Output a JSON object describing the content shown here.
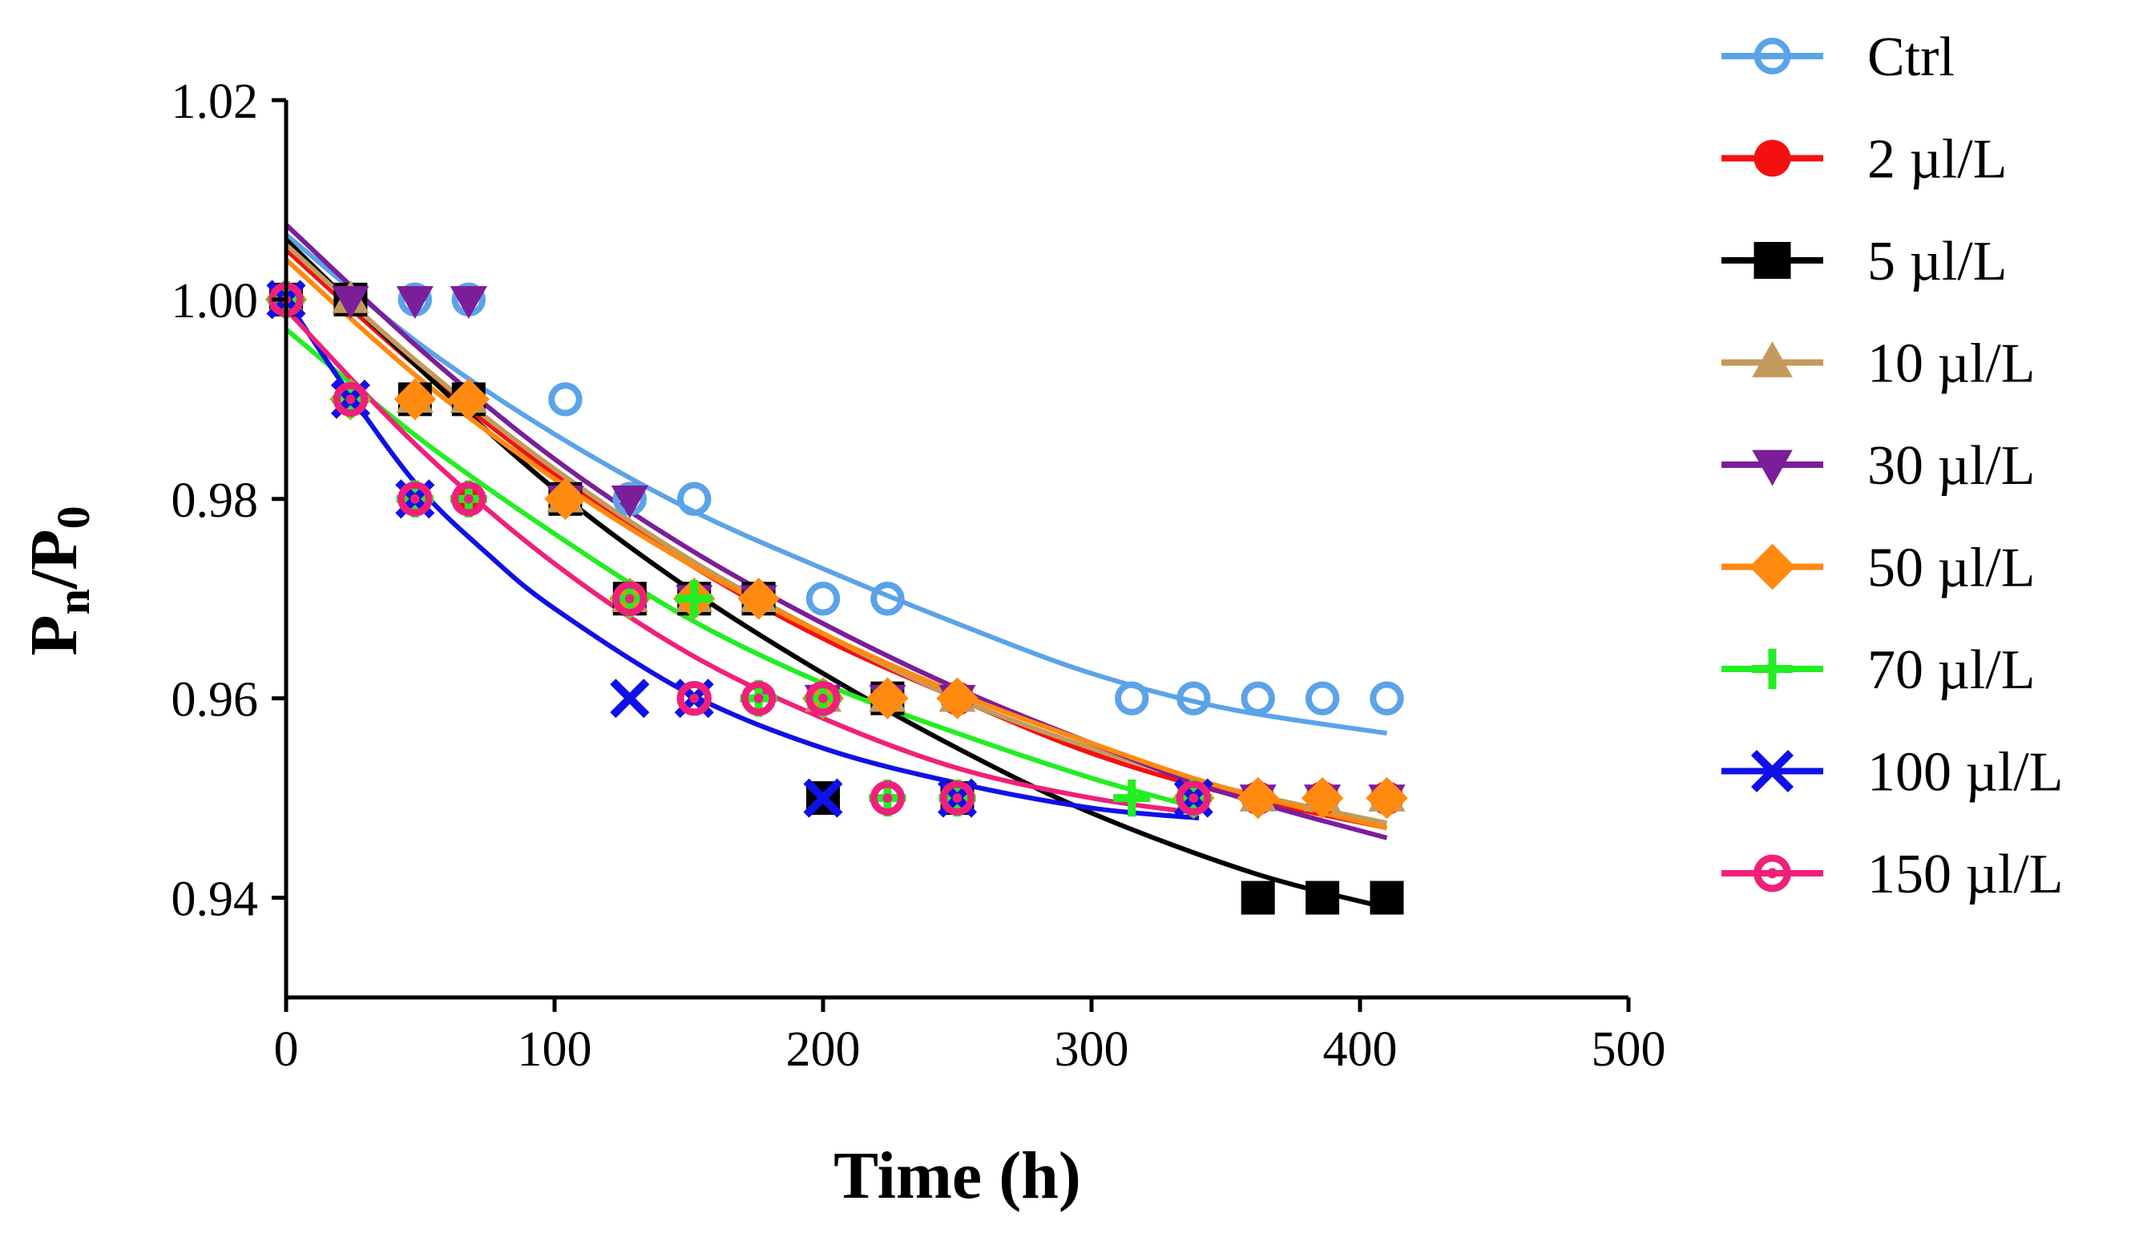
{
  "chart_data": {
    "type": "scatter",
    "title": "",
    "xlabel": "Time (h)",
    "ylabel": {
      "base": "P",
      "num_sub": "n",
      "sep": "/",
      "den_base": "P",
      "den_sub": "0"
    },
    "xlim": [
      0,
      500
    ],
    "ylim": [
      0.93,
      1.02
    ],
    "xticks": [
      0,
      100,
      200,
      300,
      400,
      500
    ],
    "yticks": [
      0.94,
      0.96,
      0.98,
      1.0,
      1.02
    ],
    "xtick_labels": [
      "0",
      "100",
      "200",
      "300",
      "400",
      "500"
    ],
    "ytick_labels": [
      "0.94",
      "0.96",
      "0.98",
      "1.00",
      "1.02"
    ],
    "grid": false,
    "legend_position": "right",
    "series": [
      {
        "name": "Ctrl",
        "color": "#5BA3E8",
        "marker": "circle-open",
        "x": [
          0,
          24,
          48,
          68,
          104,
          128,
          152,
          176,
          200,
          224,
          250,
          315,
          338,
          362,
          386,
          410
        ],
        "y": [
          1.0,
          1.0,
          1.0,
          1.0,
          0.99,
          0.98,
          0.98,
          0.97,
          0.97,
          0.97,
          0.96,
          0.96,
          0.96,
          0.96,
          0.96,
          0.96
        ],
        "fit_x": [
          0,
          50,
          100,
          150,
          200,
          250,
          300,
          350,
          410
        ],
        "fit_y": [
          1.0065,
          0.9955,
          0.9865,
          0.979,
          0.973,
          0.9675,
          0.9625,
          0.959,
          0.9565
        ]
      },
      {
        "name": "2 µl/L",
        "color": "#F41010",
        "marker": "circle-filled",
        "x": [
          0,
          24,
          48,
          68,
          104,
          128,
          152,
          176,
          200,
          224,
          250,
          338,
          362,
          386,
          410
        ],
        "y": [
          1.0,
          0.99,
          0.99,
          0.98,
          0.98,
          0.97,
          0.97,
          0.97,
          0.96,
          0.96,
          0.96,
          0.95,
          0.95,
          0.95,
          0.95
        ],
        "fit_x": [
          0,
          50,
          100,
          150,
          200,
          250,
          300,
          350,
          410
        ],
        "fit_y": [
          1.005,
          0.993,
          0.9825,
          0.9735,
          0.966,
          0.96,
          0.9545,
          0.9505,
          0.947
        ]
      },
      {
        "name": "5 µl/L",
        "color": "#000000",
        "marker": "square-filled",
        "x": [
          0,
          24,
          48,
          68,
          104,
          128,
          152,
          176,
          200,
          224,
          250,
          362,
          386,
          410
        ],
        "y": [
          1.0,
          1.0,
          0.99,
          0.99,
          0.98,
          0.97,
          0.97,
          0.97,
          0.95,
          0.96,
          0.95,
          0.94,
          0.94,
          0.94
        ],
        "fit_x": [
          0,
          50,
          100,
          150,
          200,
          250,
          300,
          360,
          410
        ],
        "fit_y": [
          1.006,
          0.993,
          0.981,
          0.971,
          0.9625,
          0.955,
          0.9485,
          0.9425,
          0.939
        ]
      },
      {
        "name": "10 µl/L",
        "color": "#C49A5C",
        "marker": "triangle-up-filled",
        "x": [
          0,
          24,
          48,
          68,
          104,
          128,
          152,
          176,
          200,
          224,
          250,
          338,
          362,
          386,
          410
        ],
        "y": [
          1.0,
          1.0,
          0.99,
          0.99,
          0.98,
          0.97,
          0.97,
          0.97,
          0.96,
          0.96,
          0.96,
          0.95,
          0.95,
          0.95,
          0.95
        ],
        "fit_x": [
          0,
          50,
          100,
          150,
          200,
          250,
          300,
          350,
          410
        ],
        "fit_y": [
          1.0055,
          0.9935,
          0.983,
          0.974,
          0.9665,
          0.96,
          0.955,
          0.951,
          0.9475
        ]
      },
      {
        "name": "30 µl/L",
        "color": "#7B1E9A",
        "marker": "triangle-down-filled",
        "x": [
          0,
          24,
          48,
          68,
          104,
          128,
          152,
          176,
          200,
          224,
          250,
          338,
          362,
          386,
          410
        ],
        "y": [
          1.0,
          1.0,
          1.0,
          1.0,
          0.98,
          0.98,
          0.97,
          0.97,
          0.96,
          0.96,
          0.96,
          0.95,
          0.95,
          0.95,
          0.95
        ],
        "fit_x": [
          0,
          50,
          100,
          150,
          200,
          250,
          300,
          350,
          410
        ],
        "fit_y": [
          1.0075,
          0.995,
          0.984,
          0.975,
          0.9675,
          0.961,
          0.9555,
          0.9505,
          0.946
        ]
      },
      {
        "name": "50 µl/L",
        "color": "#FF8A10",
        "marker": "diamond-filled",
        "x": [
          0,
          24,
          48,
          68,
          104,
          128,
          152,
          176,
          200,
          224,
          250,
          338,
          362,
          386,
          410
        ],
        "y": [
          1.0,
          0.99,
          0.99,
          0.99,
          0.98,
          0.97,
          0.97,
          0.97,
          0.96,
          0.96,
          0.96,
          0.95,
          0.95,
          0.95,
          0.95
        ],
        "fit_x": [
          0,
          50,
          100,
          150,
          200,
          250,
          300,
          350,
          410
        ],
        "fit_y": [
          1.004,
          0.992,
          0.982,
          0.9735,
          0.9665,
          0.9605,
          0.9555,
          0.951,
          0.947
        ]
      },
      {
        "name": "70 µl/L",
        "color": "#22EE22",
        "marker": "plus",
        "x": [
          0,
          24,
          48,
          68,
          128,
          152,
          176,
          200,
          224,
          250,
          315,
          338
        ],
        "y": [
          1.0,
          0.99,
          0.98,
          0.98,
          0.97,
          0.97,
          0.96,
          0.96,
          0.95,
          0.95,
          0.95,
          0.95
        ],
        "fit_x": [
          0,
          50,
          100,
          150,
          200,
          250,
          300,
          340
        ],
        "fit_y": [
          0.997,
          0.986,
          0.9765,
          0.968,
          0.9615,
          0.9565,
          0.952,
          0.949
        ]
      },
      {
        "name": "100 µl/L",
        "color": "#1010E8",
        "marker": "x",
        "x": [
          0,
          24,
          48,
          128,
          152,
          200,
          250,
          338
        ],
        "y": [
          1.0,
          0.99,
          0.98,
          0.96,
          0.96,
          0.95,
          0.95,
          0.95
        ],
        "fit_x": [
          0,
          25,
          50,
          75,
          100,
          150,
          200,
          250,
          300,
          340
        ],
        "fit_y": [
          1.0,
          0.99,
          0.981,
          0.9745,
          0.969,
          0.9605,
          0.955,
          0.9515,
          0.949,
          0.948
        ]
      },
      {
        "name": "150 µl/L",
        "color": "#F0207A",
        "marker": "circle-dot",
        "x": [
          0,
          24,
          48,
          68,
          128,
          152,
          176,
          200,
          224,
          250,
          338
        ],
        "y": [
          1.0,
          0.99,
          0.98,
          0.98,
          0.97,
          0.96,
          0.96,
          0.96,
          0.95,
          0.95,
          0.95
        ],
        "fit_x": [
          0,
          50,
          100,
          150,
          200,
          250,
          300,
          340
        ],
        "fit_y": [
          0.999,
          0.985,
          0.9735,
          0.9645,
          0.958,
          0.953,
          0.95,
          0.9485
        ]
      }
    ]
  }
}
